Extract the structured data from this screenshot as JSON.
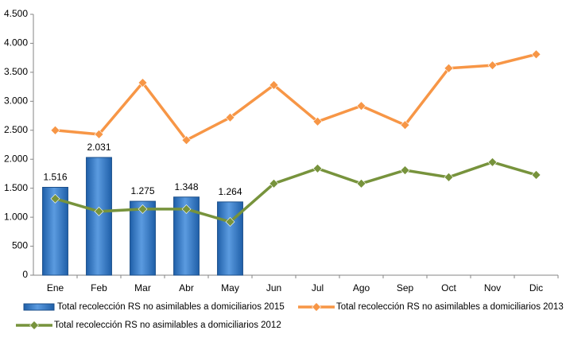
{
  "chart_data": {
    "type": "combo",
    "categories": [
      "Ene",
      "Feb",
      "Mar",
      "Abr",
      "May",
      "Jun",
      "Jul",
      "Ago",
      "Sep",
      "Oct",
      "Nov",
      "Dic"
    ],
    "ylim": [
      0,
      4500
    ],
    "yticks": [
      0,
      500,
      {
        "value": 1000,
        "label": "1.000"
      },
      {
        "value": 1500,
        "label": "1.500"
      },
      {
        "value": 2000,
        "label": "2.000"
      },
      {
        "value": 2500,
        "label": "2.500"
      },
      {
        "value": 3000,
        "label": "3.000"
      },
      {
        "value": 3500,
        "label": "3.500"
      },
      {
        "value": 4000,
        "label": "4.000"
      },
      {
        "value": 4500,
        "label": "4.500"
      }
    ],
    "grid": false,
    "series": [
      {
        "name": "Total recolección RS no asimilables a domiciliarios 2015",
        "type": "bar",
        "color": "#3a78c8",
        "values": [
          1516,
          2031,
          1275,
          1348,
          1264,
          null,
          null,
          null,
          null,
          null,
          null,
          null
        ],
        "value_labels": [
          "1.516",
          "2.031",
          "1.275",
          "1.348",
          "1.264",
          null,
          null,
          null,
          null,
          null,
          null,
          null
        ]
      },
      {
        "name": "Total recolección RS no asimilables a domiciliarios 2013",
        "type": "line",
        "color": "#f79646",
        "values": [
          2500,
          2430,
          3320,
          2330,
          2720,
          3280,
          2650,
          2920,
          2590,
          3570,
          3620,
          3810
        ]
      },
      {
        "name": "Total recolección RS no asimilables a domiciliarios 2012",
        "type": "line",
        "color": "#77933c",
        "values": [
          1320,
          1100,
          1140,
          1140,
          920,
          1580,
          1840,
          1580,
          1810,
          1690,
          1950,
          1730
        ]
      }
    ]
  }
}
